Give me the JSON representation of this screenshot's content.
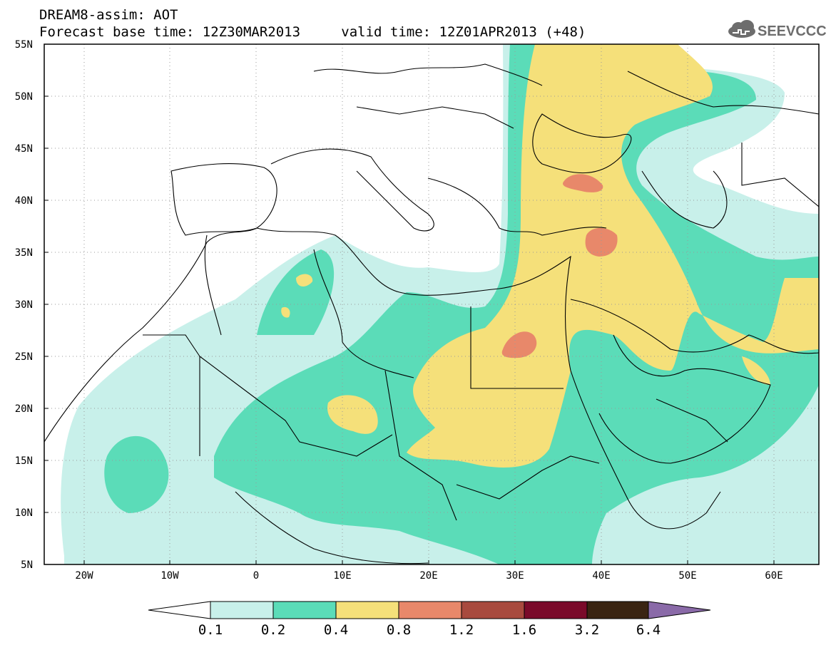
{
  "header": {
    "title_line1": "DREAM8-assim: AOT",
    "base_time_label": "Forecast base time: 12Z30MAR2013",
    "valid_time_label": "valid time: 12Z01APR2013 (+48)"
  },
  "logo": {
    "text": "SEEVCCC",
    "icon": "cloud-icon"
  },
  "axes": {
    "lat_labels": [
      "55N",
      "50N",
      "45N",
      "40N",
      "35N",
      "30N",
      "25N",
      "20N",
      "15N",
      "10N",
      "5N"
    ],
    "lon_labels": [
      "20W",
      "10W",
      "0",
      "10E",
      "20E",
      "30E",
      "40E",
      "50E",
      "60E"
    ],
    "lon_range": [
      -25,
      65
    ],
    "lat_range": [
      5,
      55
    ],
    "grid": "dotted"
  },
  "legend": {
    "levels": [
      "0.1",
      "0.2",
      "0.4",
      "0.8",
      "1.2",
      "1.6",
      "3.2",
      "6.4"
    ],
    "colors": [
      "#ffffff",
      "#c8f0ea",
      "#5bdcb8",
      "#f5e07a",
      "#e8886a",
      "#a84a3e",
      "#7a0a2a",
      "#3a2412",
      "#8a6aa8"
    ]
  }
}
